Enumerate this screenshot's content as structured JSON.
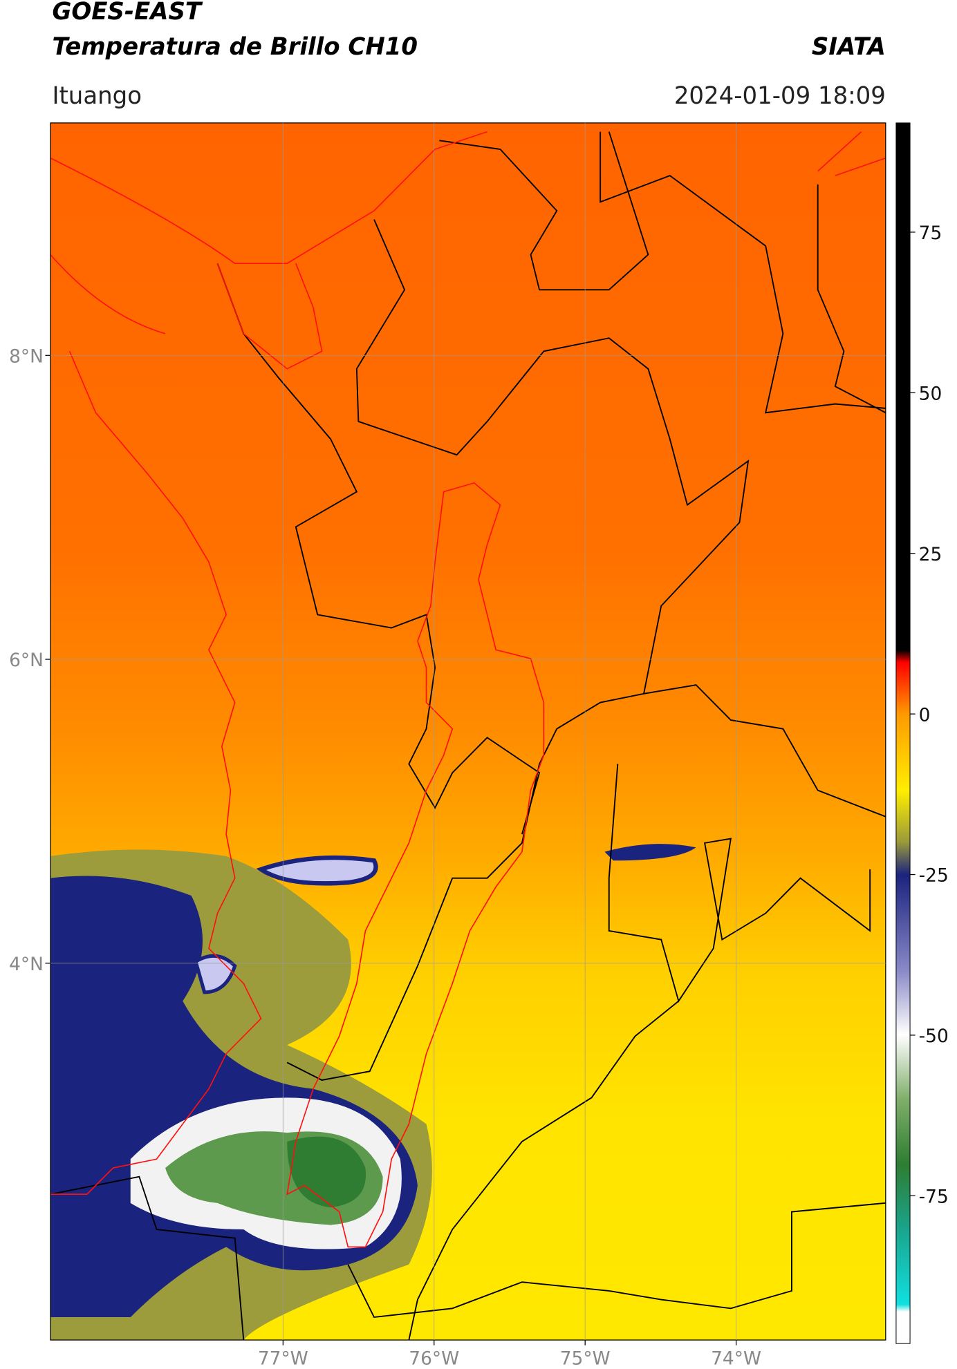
{
  "header": {
    "title": "GOES-EAST",
    "subtitle": "Temperatura de Brillo CH10",
    "source": "SIATA",
    "location": "Ituango",
    "datetime": "2024-01-09 18:09"
  },
  "chart_data": {
    "type": "map",
    "xlim": [
      -78.54,
      -73.01
    ],
    "ylim": [
      1.52,
      9.53
    ],
    "xticks": [
      {
        "value": -77,
        "label": "77°W"
      },
      {
        "value": -76,
        "label": "76°W"
      },
      {
        "value": -75,
        "label": "75°W"
      },
      {
        "value": -74,
        "label": "74°W"
      }
    ],
    "yticks": [
      {
        "value": 4,
        "label": "4°N"
      },
      {
        "value": 6,
        "label": "6°N"
      },
      {
        "value": 8,
        "label": "8°N"
      }
    ],
    "grid": true,
    "colorbar": {
      "lim": [
        -98,
        92
      ],
      "ticks": [
        -75,
        -50,
        -25,
        0,
        25,
        50,
        75
      ]
    }
  }
}
